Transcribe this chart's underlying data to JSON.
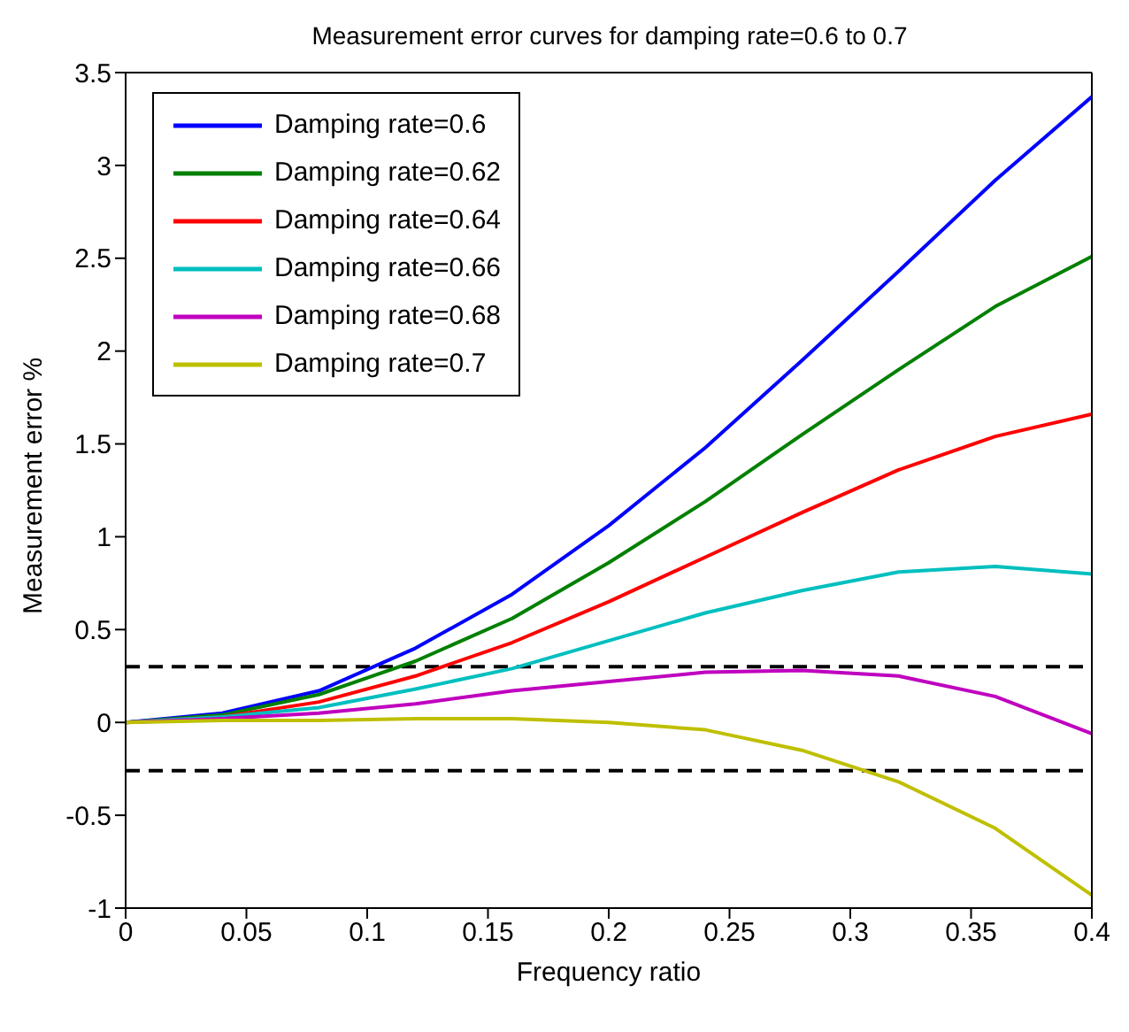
{
  "chart_data": {
    "type": "line",
    "title": "Measurement error curves for damping rate=0.6 to 0.7",
    "xlabel": "Frequency ratio",
    "ylabel": "Measurement error %",
    "x": [
      0,
      0.04,
      0.08,
      0.12,
      0.16,
      0.2,
      0.24,
      0.28,
      0.32,
      0.36,
      0.4
    ],
    "series": [
      {
        "name": "Damping rate=0.6",
        "color": "#0000ff",
        "values": [
          0,
          0.05,
          0.17,
          0.4,
          0.69,
          1.06,
          1.48,
          1.95,
          2.43,
          2.92,
          3.37
        ]
      },
      {
        "name": "Damping rate=0.62",
        "color": "#008000",
        "values": [
          0,
          0.04,
          0.15,
          0.33,
          0.56,
          0.86,
          1.19,
          1.55,
          1.9,
          2.24,
          2.51
        ]
      },
      {
        "name": "Damping rate=0.64",
        "color": "#ff0000",
        "values": [
          0,
          0.03,
          0.11,
          0.25,
          0.43,
          0.65,
          0.89,
          1.13,
          1.36,
          1.54,
          1.66
        ]
      },
      {
        "name": "Damping rate=0.66",
        "color": "#00bfbf",
        "values": [
          0,
          0.03,
          0.08,
          0.18,
          0.29,
          0.44,
          0.59,
          0.71,
          0.81,
          0.84,
          0.8
        ]
      },
      {
        "name": "Damping rate=0.68",
        "color": "#bf00bf",
        "values": [
          0,
          0.02,
          0.05,
          0.1,
          0.17,
          0.22,
          0.27,
          0.28,
          0.25,
          0.14,
          -0.06
        ]
      },
      {
        "name": "Damping rate=0.7",
        "color": "#bfbf00",
        "values": [
          0,
          0.01,
          0.01,
          0.02,
          0.02,
          0,
          -0.04,
          -0.15,
          -0.32,
          -0.57,
          -0.93
        ]
      }
    ],
    "xlim": [
      0,
      0.4
    ],
    "xticks": [
      0,
      0.05,
      0.1,
      0.15,
      0.2,
      0.25,
      0.3,
      0.35,
      0.4
    ],
    "ylim": [
      -1,
      3.5
    ],
    "yticks": [
      -1,
      -0.5,
      0,
      0.5,
      1,
      1.5,
      2,
      2.5,
      3,
      3.5
    ],
    "ref_lines": [
      {
        "axis": "y",
        "value": 0.3,
        "color": "#000000",
        "line_style": "dashed"
      },
      {
        "axis": "y",
        "value": -0.26,
        "color": "#000000",
        "line_style": "dashed"
      }
    ],
    "grid": false,
    "legend": "top left",
    "marker": "none",
    "line_style": "solid"
  }
}
